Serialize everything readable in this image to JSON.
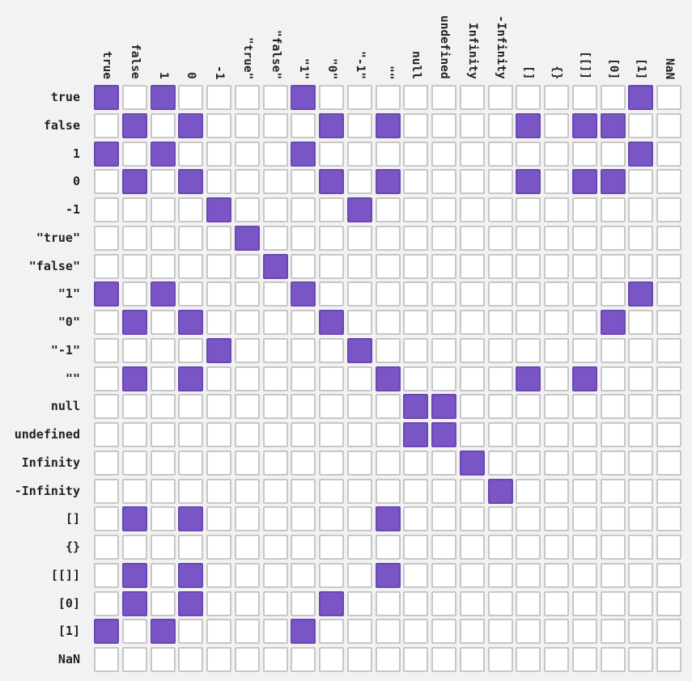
{
  "chart_data": {
    "type": "heatmap",
    "columns": [
      "true",
      "false",
      "1",
      "0",
      "-1",
      "\"true\"",
      "\"false\"",
      "\"1\"",
      "\"0\"",
      "\"-1\"",
      "\"\"",
      "null",
      "undefined",
      "Infinity",
      "-Infinity",
      "[]",
      "{}",
      "[[]]",
      "[0]",
      "[1]",
      "NaN"
    ],
    "rows": [
      "true",
      "false",
      "1",
      "0",
      "-1",
      "\"true\"",
      "\"false\"",
      "\"1\"",
      "\"0\"",
      "\"-1\"",
      "\"\"",
      "null",
      "undefined",
      "Infinity",
      "-Infinity",
      "[]",
      "{}",
      "[[]]",
      "[0]",
      "[1]",
      "NaN"
    ],
    "matrix": [
      [
        1,
        0,
        1,
        0,
        0,
        0,
        0,
        1,
        0,
        0,
        0,
        0,
        0,
        0,
        0,
        0,
        0,
        0,
        0,
        1,
        0
      ],
      [
        0,
        1,
        0,
        1,
        0,
        0,
        0,
        0,
        1,
        0,
        1,
        0,
        0,
        0,
        0,
        1,
        0,
        1,
        1,
        0,
        0
      ],
      [
        1,
        0,
        1,
        0,
        0,
        0,
        0,
        1,
        0,
        0,
        0,
        0,
        0,
        0,
        0,
        0,
        0,
        0,
        0,
        1,
        0
      ],
      [
        0,
        1,
        0,
        1,
        0,
        0,
        0,
        0,
        1,
        0,
        1,
        0,
        0,
        0,
        0,
        1,
        0,
        1,
        1,
        0,
        0
      ],
      [
        0,
        0,
        0,
        0,
        1,
        0,
        0,
        0,
        0,
        1,
        0,
        0,
        0,
        0,
        0,
        0,
        0,
        0,
        0,
        0,
        0
      ],
      [
        0,
        0,
        0,
        0,
        0,
        1,
        0,
        0,
        0,
        0,
        0,
        0,
        0,
        0,
        0,
        0,
        0,
        0,
        0,
        0,
        0
      ],
      [
        0,
        0,
        0,
        0,
        0,
        0,
        1,
        0,
        0,
        0,
        0,
        0,
        0,
        0,
        0,
        0,
        0,
        0,
        0,
        0,
        0
      ],
      [
        1,
        0,
        1,
        0,
        0,
        0,
        0,
        1,
        0,
        0,
        0,
        0,
        0,
        0,
        0,
        0,
        0,
        0,
        0,
        1,
        0
      ],
      [
        0,
        1,
        0,
        1,
        0,
        0,
        0,
        0,
        1,
        0,
        0,
        0,
        0,
        0,
        0,
        0,
        0,
        0,
        1,
        0,
        0
      ],
      [
        0,
        0,
        0,
        0,
        1,
        0,
        0,
        0,
        0,
        1,
        0,
        0,
        0,
        0,
        0,
        0,
        0,
        0,
        0,
        0,
        0
      ],
      [
        0,
        1,
        0,
        1,
        0,
        0,
        0,
        0,
        0,
        0,
        1,
        0,
        0,
        0,
        0,
        1,
        0,
        1,
        0,
        0,
        0
      ],
      [
        0,
        0,
        0,
        0,
        0,
        0,
        0,
        0,
        0,
        0,
        0,
        1,
        1,
        0,
        0,
        0,
        0,
        0,
        0,
        0,
        0
      ],
      [
        0,
        0,
        0,
        0,
        0,
        0,
        0,
        0,
        0,
        0,
        0,
        1,
        1,
        0,
        0,
        0,
        0,
        0,
        0,
        0,
        0
      ],
      [
        0,
        0,
        0,
        0,
        0,
        0,
        0,
        0,
        0,
        0,
        0,
        0,
        0,
        1,
        0,
        0,
        0,
        0,
        0,
        0,
        0
      ],
      [
        0,
        0,
        0,
        0,
        0,
        0,
        0,
        0,
        0,
        0,
        0,
        0,
        0,
        0,
        1,
        0,
        0,
        0,
        0,
        0,
        0
      ],
      [
        0,
        1,
        0,
        1,
        0,
        0,
        0,
        0,
        0,
        0,
        1,
        0,
        0,
        0,
        0,
        0,
        0,
        0,
        0,
        0,
        0
      ],
      [
        0,
        0,
        0,
        0,
        0,
        0,
        0,
        0,
        0,
        0,
        0,
        0,
        0,
        0,
        0,
        0,
        0,
        0,
        0,
        0,
        0
      ],
      [
        0,
        1,
        0,
        1,
        0,
        0,
        0,
        0,
        0,
        0,
        1,
        0,
        0,
        0,
        0,
        0,
        0,
        0,
        0,
        0,
        0
      ],
      [
        0,
        1,
        0,
        1,
        0,
        0,
        0,
        0,
        1,
        0,
        0,
        0,
        0,
        0,
        0,
        0,
        0,
        0,
        0,
        0,
        0
      ],
      [
        1,
        0,
        1,
        0,
        0,
        0,
        0,
        1,
        0,
        0,
        0,
        0,
        0,
        0,
        0,
        0,
        0,
        0,
        0,
        0,
        0
      ],
      [
        0,
        0,
        0,
        0,
        0,
        0,
        0,
        0,
        0,
        0,
        0,
        0,
        0,
        0,
        0,
        0,
        0,
        0,
        0,
        0,
        0
      ]
    ],
    "grid": true,
    "legend": "none"
  },
  "colors": {
    "filled": "#7a55c5",
    "filled_border": "#6a47b3",
    "empty": "#ffffff",
    "empty_border": "#c7c7c7",
    "background": "#f2f2f2",
    "text": "#222222"
  }
}
